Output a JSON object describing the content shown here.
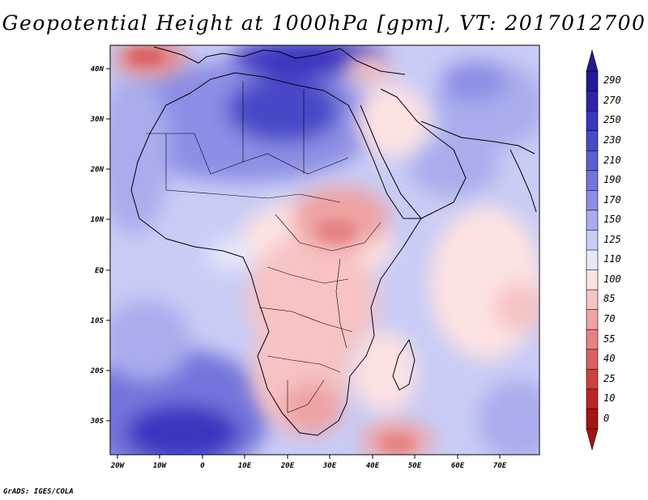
{
  "title": "Geopotential Height at 1000hPa [gpm], VT: 2017012700",
  "credit": "GrADS: IGES/COLA",
  "map": {
    "variable": "Geopotential Height",
    "level": "1000hPa",
    "units": "gpm",
    "valid_time": "2017012700",
    "lon_labels": [
      "20W",
      "10W",
      "0",
      "10E",
      "20E",
      "30E",
      "40E",
      "50E",
      "60E",
      "70E"
    ],
    "lat_labels": [
      "40N",
      "30N",
      "20N",
      "10N",
      "EQ",
      "10S",
      "20S",
      "30S"
    ]
  },
  "colorbar": {
    "levels": [
      "290",
      "270",
      "250",
      "230",
      "210",
      "190",
      "170",
      "150",
      "125",
      "110",
      "100",
      "85",
      "70",
      "55",
      "40",
      "25",
      "10",
      "0"
    ],
    "colors": [
      "#221b96",
      "#2c23ae",
      "#3a36c0",
      "#4a4ac8",
      "#5d5ed2",
      "#7374dc",
      "#8c8fe5",
      "#a9aded",
      "#c9ccf5",
      "#e6e8fb",
      "#fde2e2",
      "#f7c3c3",
      "#efa3a3",
      "#e58383",
      "#d96161",
      "#cc4040",
      "#bc2525",
      "#a41515"
    ]
  }
}
